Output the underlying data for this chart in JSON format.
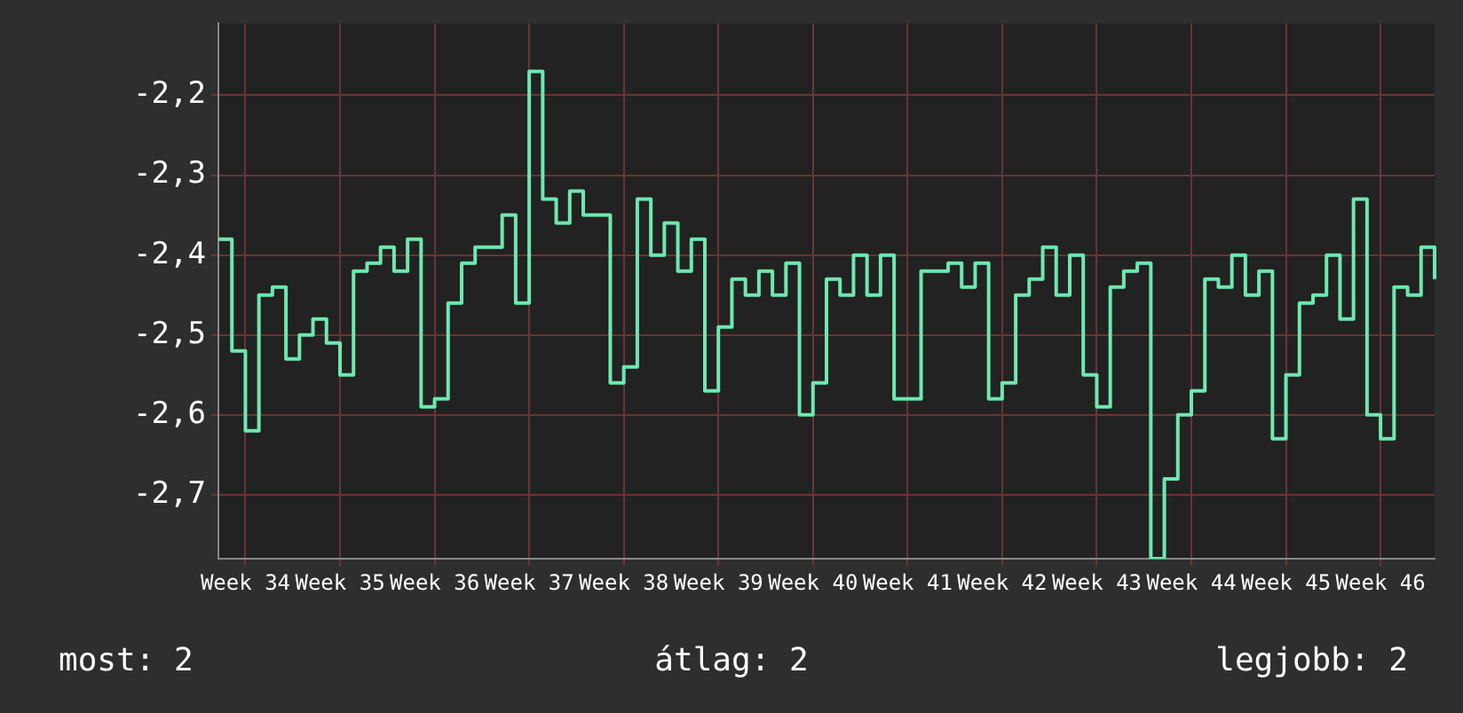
{
  "chart_data": {
    "type": "step",
    "categories": [
      null,
      null,
      "Week 34",
      null,
      null,
      null,
      null,
      null,
      null,
      "Week 35",
      null,
      null,
      null,
      null,
      null,
      null,
      "Week 36",
      null,
      null,
      null,
      null,
      null,
      null,
      "Week 37",
      null,
      null,
      null,
      null,
      null,
      null,
      "Week 38",
      null,
      null,
      null,
      null,
      null,
      null,
      "Week 39",
      null,
      null,
      null,
      null,
      null,
      null,
      "Week 40",
      null,
      null,
      null,
      null,
      null,
      null,
      "Week 41",
      null,
      null,
      null,
      null,
      null,
      null,
      "Week 42",
      null,
      null,
      null,
      null,
      null,
      null,
      "Week 43",
      null,
      null,
      null,
      null,
      null,
      null,
      "Week 44",
      null,
      null,
      null,
      null,
      null,
      null,
      "Week 45",
      null,
      null,
      null,
      null,
      null,
      null,
      "Week 46",
      null,
      null,
      null,
      null
    ],
    "series": [
      {
        "color": "#6ee8b0",
        "values": [
          -2.38,
          -2.52,
          -2.62,
          -2.45,
          -2.44,
          -2.53,
          -2.5,
          -2.48,
          -2.51,
          -2.55,
          -2.42,
          -2.41,
          -2.39,
          -2.42,
          -2.38,
          -2.59,
          -2.58,
          -2.46,
          -2.41,
          -2.39,
          -2.39,
          -2.35,
          -2.46,
          -2.17,
          -2.33,
          -2.36,
          -2.32,
          -2.35,
          -2.35,
          -2.56,
          -2.54,
          -2.33,
          -2.4,
          -2.36,
          -2.42,
          -2.38,
          -2.57,
          -2.49,
          -2.43,
          -2.45,
          -2.42,
          -2.45,
          -2.41,
          -2.6,
          -2.56,
          -2.43,
          -2.45,
          -2.4,
          -2.45,
          -2.4,
          -2.58,
          -2.58,
          -2.42,
          -2.42,
          -2.41,
          -2.44,
          -2.41,
          -2.58,
          -2.56,
          -2.45,
          -2.43,
          -2.39,
          -2.45,
          -2.4,
          -2.55,
          -2.59,
          -2.44,
          -2.42,
          -2.41,
          -2.78,
          -2.68,
          -2.6,
          -2.57,
          -2.43,
          -2.44,
          -2.4,
          -2.45,
          -2.42,
          -2.63,
          -2.55,
          -2.46,
          -2.45,
          -2.4,
          -2.48,
          -2.33,
          -2.6,
          -2.63,
          -2.44,
          -2.45,
          -2.39,
          -2.43
        ]
      }
    ],
    "ylim": [
      -2.78,
      -2.11
    ],
    "yticks": [
      {
        "value": -2.7,
        "label": "-2,7"
      },
      {
        "value": -2.6,
        "label": "-2,6"
      },
      {
        "value": -2.5,
        "label": "-2,5"
      },
      {
        "value": -2.4,
        "label": "-2,4"
      },
      {
        "value": -2.3,
        "label": "-2,3"
      },
      {
        "value": -2.2,
        "label": "-2,2"
      }
    ],
    "grid": true,
    "legend": false,
    "marker": "none",
    "line_style": "solid",
    "annotations": [
      "most: 2",
      "átlag: 2",
      "legjobb: 2"
    ]
  }
}
